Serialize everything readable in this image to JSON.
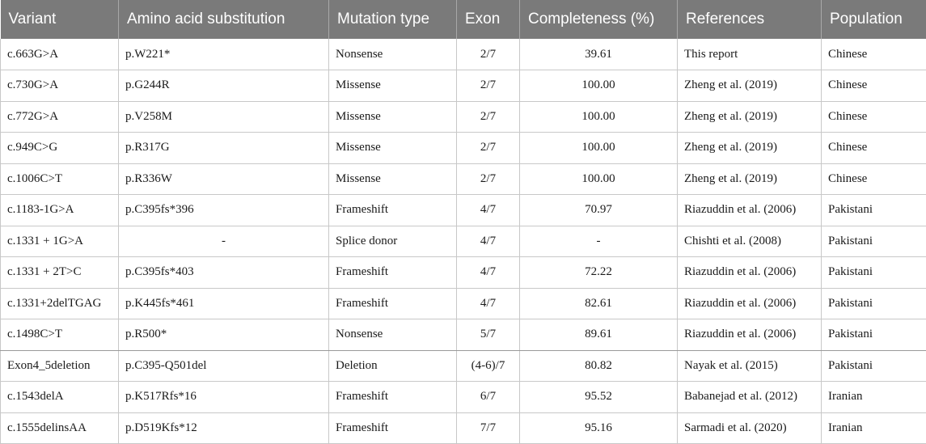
{
  "headers": [
    "Variant",
    "Amino acid substitution",
    "Mutation type",
    "Exon",
    "Completeness (%)",
    "References",
    "Population"
  ],
  "rows": [
    [
      "c.663G>A",
      "p.W221*",
      "Nonsense",
      "2/7",
      "39.61",
      "This report",
      "Chinese"
    ],
    [
      "c.730G>A",
      "p.G244R",
      "Missense",
      "2/7",
      "100.00",
      "Zheng et al. (2019)",
      "Chinese"
    ],
    [
      "c.772G>A",
      "p.V258M",
      "Missense",
      "2/7",
      "100.00",
      "Zheng et al. (2019)",
      "Chinese"
    ],
    [
      "c.949C>G",
      "p.R317G",
      "Missense",
      "2/7",
      "100.00",
      "Zheng et al. (2019)",
      "Chinese"
    ],
    [
      "c.1006C>T",
      "p.R336W",
      "Missense",
      "2/7",
      "100.00",
      "Zheng et al. (2019)",
      "Chinese"
    ],
    [
      "c.1183-1G>A",
      "p.C395fs*396",
      "Frameshift",
      "4/7",
      "70.97",
      "Riazuddin et al. (2006)",
      "Pakistani"
    ],
    [
      "c.1331 + 1G>A",
      "-",
      "Splice donor",
      "4/7",
      "-",
      "Chishti et al. (2008)",
      "Pakistani"
    ],
    [
      "c.1331 + 2T>C",
      "p.C395fs*403",
      "Frameshift",
      "4/7",
      "72.22",
      "Riazuddin et al. (2006)",
      "Pakistani"
    ],
    [
      "c.1331+2delTGAG",
      "p.K445fs*461",
      "Frameshift",
      "4/7",
      "82.61",
      "Riazuddin et al. (2006)",
      "Pakistani"
    ],
    [
      "c.1498C>T",
      "p.R500*",
      "Nonsense",
      "5/7",
      "89.61",
      "Riazuddin et al. (2006)",
      "Pakistani"
    ],
    [
      "Exon4_5deletion",
      "p.C395-Q501del",
      "Deletion",
      "(4-6)/7",
      "80.82",
      "Nayak et al. (2015)",
      "Pakistani"
    ],
    [
      "c.1543delA",
      "p.K517Rfs*16",
      "Frameshift",
      "6/7",
      "95.52",
      "Babanejad et al. (2012)",
      "Iranian"
    ],
    [
      "c.1555delinsAA",
      "p.D519Kfs*12",
      "Frameshift",
      "7/7",
      "95.16",
      "Sarmadi et al. (2020)",
      "Iranian"
    ]
  ]
}
